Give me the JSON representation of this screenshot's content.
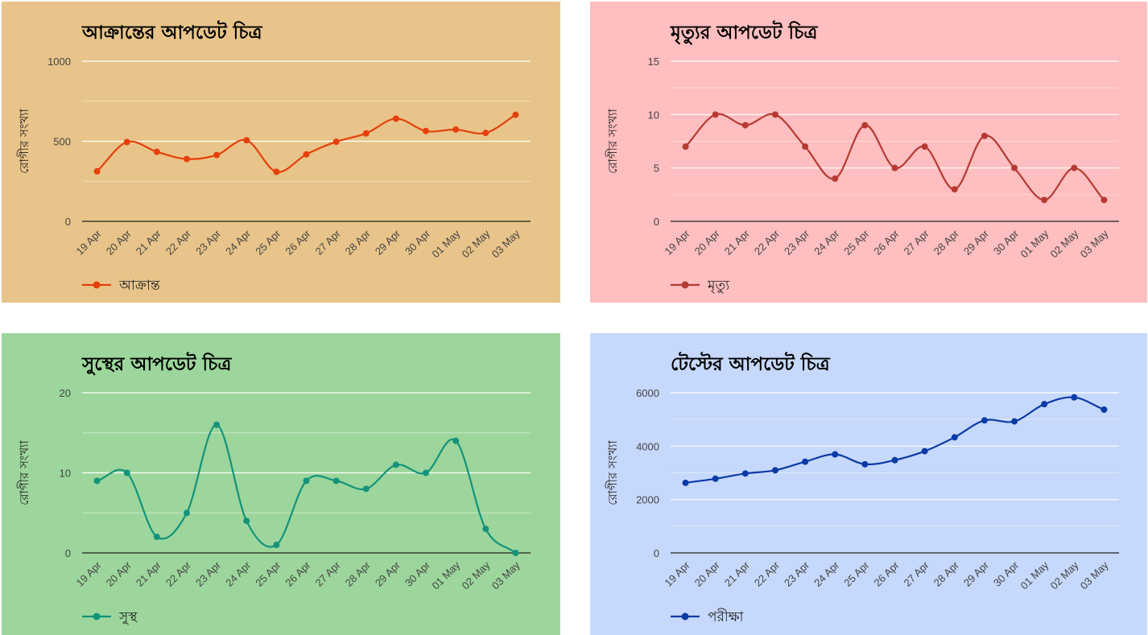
{
  "charts": [
    {
      "type": "line",
      "title": "আক্রান্তের আপডেট চিত্র",
      "ylabel": "রোগীর সংখ্যা",
      "background": "#E8C48A",
      "color": "#E5400B",
      "x": [
        "19 Apr",
        "20 Apr",
        "21 Apr",
        "22 Apr",
        "23 Apr",
        "24 Apr",
        "25 Apr",
        "26 Apr",
        "27 Apr",
        "28 Apr",
        "29 Apr",
        "30 Apr",
        "01 May",
        "02 May",
        "03 May"
      ],
      "ylim": [
        0,
        1000
      ],
      "yticks": [
        "0",
        "500",
        "1000"
      ],
      "yticks_values": [
        0,
        500,
        1000
      ],
      "minor_gridlines": [
        250,
        750
      ],
      "series": [
        {
          "name": "আক্রান্ত",
          "values": [
            312,
            495,
            434,
            389,
            414,
            506,
            309,
            418,
            497,
            549,
            641,
            564,
            573,
            552,
            665
          ]
        }
      ],
      "legend": "bottom-left"
    },
    {
      "type": "line",
      "title": "মৃত্যুর আপডেট চিত্র",
      "ylabel": "রোগীর সংখ্যা",
      "background": "#FFBEBF",
      "color": "#B53A33",
      "x": [
        "19 Apr",
        "20 Apr",
        "21 Apr",
        "22 Apr",
        "23 Apr",
        "24 Apr",
        "25 Apr",
        "26 Apr",
        "27 Apr",
        "28 Apr",
        "29 Apr",
        "30 Apr",
        "01 May",
        "02 May",
        "03 May"
      ],
      "ylim": [
        0,
        15
      ],
      "yticks": [
        "0",
        "5",
        "10",
        "15"
      ],
      "yticks_values": [
        0,
        5,
        10,
        15
      ],
      "minor_gridlines": [
        2.5,
        7.5,
        12.5
      ],
      "series": [
        {
          "name": "মৃত্যু",
          "values": [
            7,
            10,
            9,
            10,
            7,
            4,
            9,
            5,
            7,
            3,
            8,
            5,
            2,
            5,
            2
          ]
        }
      ],
      "legend": "bottom-left"
    },
    {
      "type": "line",
      "title": "সুস্থের আপডেট চিত্র",
      "ylabel": "রোগীর সংখ্যা",
      "background": "#9CD69C",
      "color": "#13937A",
      "x": [
        "19 Apr",
        "20 Apr",
        "21 Apr",
        "22 Apr",
        "23 Apr",
        "24 Apr",
        "25 Apr",
        "26 Apr",
        "27 Apr",
        "28 Apr",
        "29 Apr",
        "30 Apr",
        "01 May",
        "02 May",
        "03 May"
      ],
      "ylim": [
        0,
        20
      ],
      "yticks": [
        "0",
        "10",
        "20"
      ],
      "yticks_values": [
        0,
        10,
        20
      ],
      "minor_gridlines": [
        5,
        15
      ],
      "series": [
        {
          "name": "সুস্থ",
          "values": [
            9,
            10,
            2,
            5,
            16,
            4,
            1,
            9,
            9,
            8,
            11,
            10,
            14,
            3,
            0
          ]
        }
      ],
      "legend": "bottom-left"
    },
    {
      "type": "line",
      "title": "টেস্টের আপডেট চিত্র",
      "ylabel": "রোগীর সংখ্যা",
      "background": "#C6D8FB",
      "color": "#0A3AA6",
      "x": [
        "19 Apr",
        "20 Apr",
        "21 Apr",
        "22 Apr",
        "23 Apr",
        "24 Apr",
        "25 Apr",
        "26 Apr",
        "27 Apr",
        "28 Apr",
        "29 Apr",
        "30 Apr",
        "01 May",
        "02 May",
        "03 May"
      ],
      "ylim": [
        0,
        6000
      ],
      "yticks": [
        "0",
        "2000",
        "4000",
        "6000"
      ],
      "yticks_values": [
        0,
        2000,
        4000,
        6000
      ],
      "minor_gridlines": [
        1000,
        3000,
        5000
      ],
      "series": [
        {
          "name": "পরীক্ষা",
          "values": [
            2625,
            2779,
            2975,
            3096,
            3416,
            3692,
            3322,
            3475,
            3812,
            4332,
            4965,
            4927,
            5573,
            5827,
            5368
          ]
        }
      ],
      "legend": "bottom-left"
    }
  ]
}
